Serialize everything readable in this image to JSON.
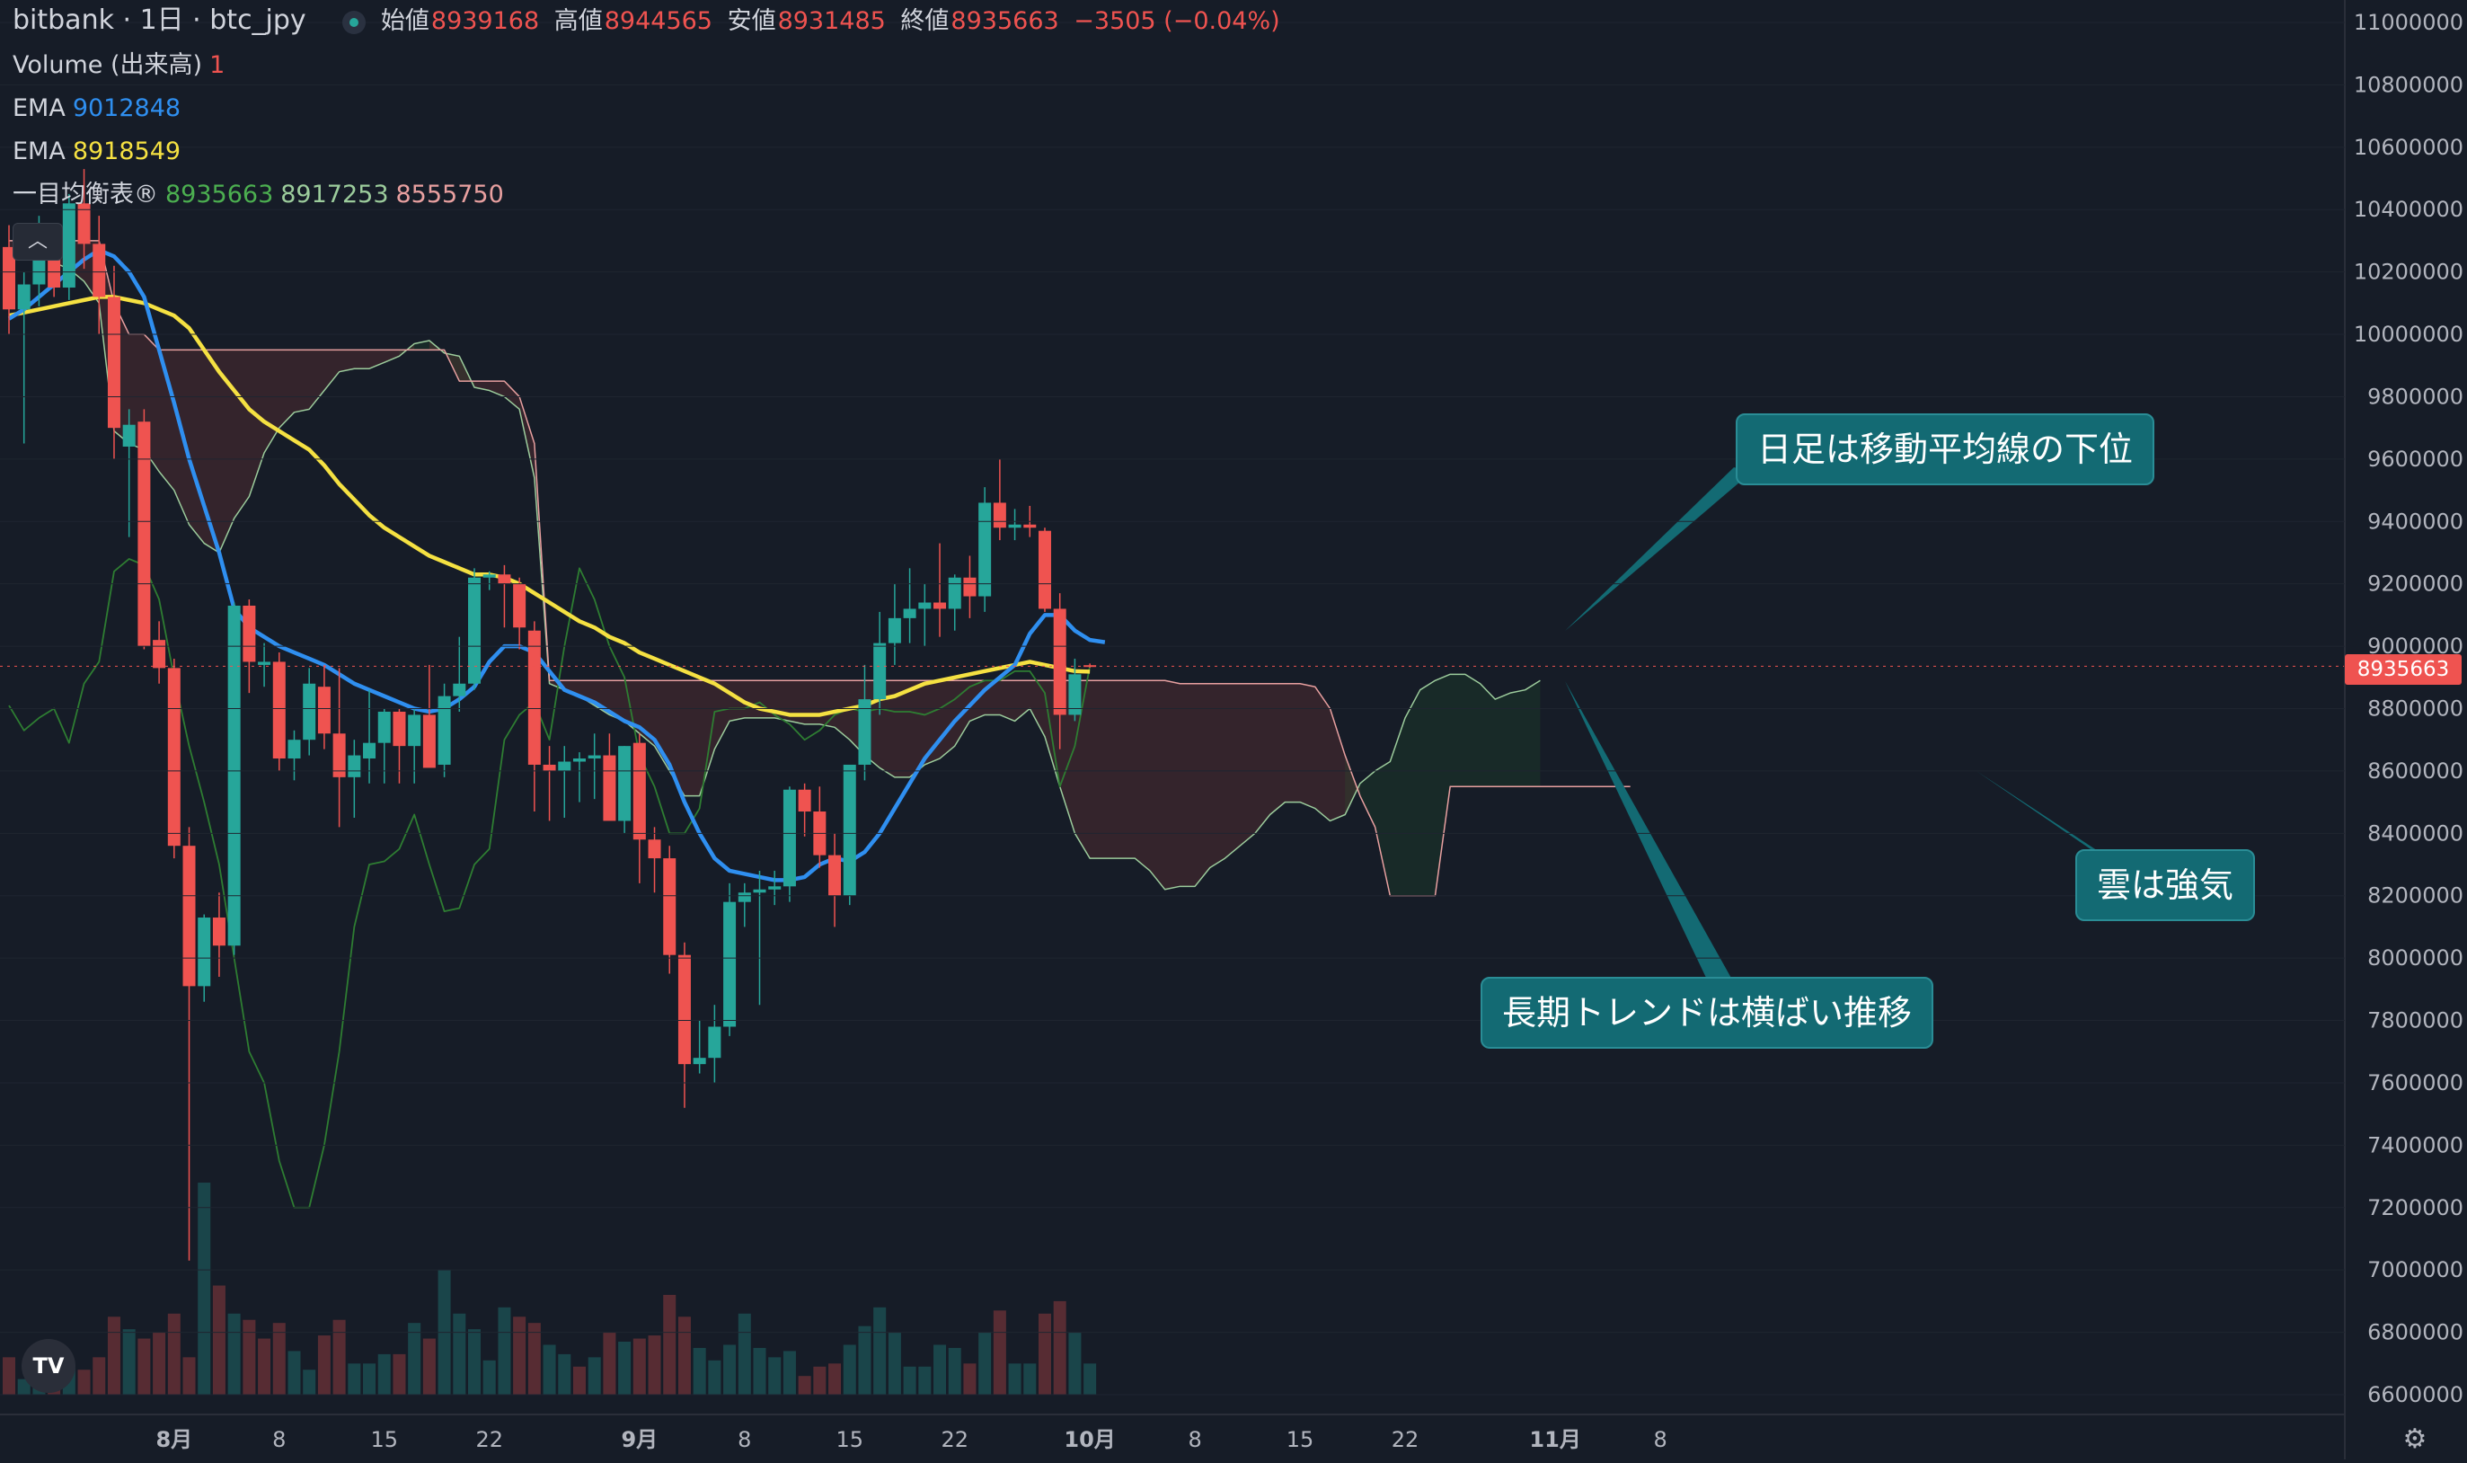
{
  "header": {
    "title": "bitbank · 1日 · btc_jpy",
    "open_label": "始値",
    "open": "8939168",
    "high_label": "高値",
    "high": "8944565",
    "low_label": "安値",
    "low": "8931485",
    "close_label": "終値",
    "close": "8935663",
    "change": "−3505 (−0.04%)"
  },
  "indicators": {
    "volume_label": "Volume (出来高)",
    "volume_value": "1",
    "ema1_label": "EMA",
    "ema1_value": "9012848",
    "ema2_label": "EMA",
    "ema2_value": "8918549",
    "ichimoku_label": "一目均衡表®",
    "ichimoku_v1": "8935663",
    "ichimoku_v2": "8917253",
    "ichimoku_v3": "8555750"
  },
  "collapse_icon": "chevron-up-icon",
  "logo": "TV",
  "settings_icon": "gear-icon",
  "price_badge": "8935663",
  "annotations": {
    "ma": "日足は移動平均線の下位",
    "trend": "長期トレンドは横ばい推移",
    "cloud": "雲は強気"
  },
  "colors": {
    "background": "#161c27",
    "up": "#26a69a",
    "down": "#ef5350",
    "ema_fast": "#2f8ff0",
    "ema_slow": "#f5e142",
    "conversion": "#2e7d32",
    "span_a": "#9ccc9c",
    "span_b": "#e8a0a0",
    "annotation": "#136a73"
  },
  "chart_data": {
    "type": "candlestick",
    "y_axis": {
      "range": [
        6600000,
        11000000
      ],
      "ticks": [
        6600000,
        6800000,
        7000000,
        7200000,
        7400000,
        7600000,
        7800000,
        8000000,
        8200000,
        8400000,
        8600000,
        8800000,
        9000000,
        9200000,
        9400000,
        9600000,
        9800000,
        10000000,
        10200000,
        10400000,
        10600000,
        10800000,
        11000000
      ],
      "tick_labels": [
        "6600000",
        "6800000",
        "7000000",
        "7200000",
        "7400000",
        "7600000",
        "7800000",
        "8000000",
        "8200000",
        "8400000",
        "8600000",
        "8800000",
        "9000000",
        "9200000",
        "9400000",
        "9600000",
        "9800000",
        "10000000",
        "10200000",
        "10400000",
        "10600000",
        "10800000",
        "11000000"
      ]
    },
    "x_axis": {
      "first_date": "2024-07-21",
      "tick_dates": [
        "2024-08-01",
        "2024-08-08",
        "2024-08-15",
        "2024-08-22",
        "2024-09-01",
        "2024-09-08",
        "2024-09-15",
        "2024-09-22",
        "2024-10-01",
        "2024-10-08",
        "2024-10-15",
        "2024-10-22",
        "2024-11-01",
        "2024-11-08"
      ],
      "tick_labels": [
        "8月",
        "8",
        "15",
        "22",
        "9月",
        "8",
        "15",
        "22",
        "10月",
        "8",
        "15",
        "22",
        "11月",
        "8"
      ]
    },
    "candles": [
      [
        10280000,
        10350000,
        10000000,
        10080000
      ],
      [
        10080000,
        10200000,
        9650000,
        10160000
      ],
      [
        10160000,
        10380000,
        10090000,
        10260000
      ],
      [
        10250000,
        10340000,
        10120000,
        10150000
      ],
      [
        10150000,
        10450000,
        10110000,
        10420000
      ],
      [
        10420000,
        10530000,
        10210000,
        10290000
      ],
      [
        10290000,
        10380000,
        10000000,
        10120000
      ],
      [
        10120000,
        10220000,
        9600000,
        9700000
      ],
      [
        9640000,
        9760000,
        9350000,
        9710000
      ],
      [
        9720000,
        9760000,
        8990000,
        9000000
      ],
      [
        9020000,
        9080000,
        8880000,
        8930000
      ],
      [
        8930000,
        8960000,
        8320000,
        8360000
      ],
      [
        8360000,
        8420000,
        7030000,
        7910000
      ],
      [
        7910000,
        8140000,
        7860000,
        8130000
      ],
      [
        8130000,
        8210000,
        7940000,
        8040000
      ],
      [
        8040000,
        9140000,
        8010000,
        9130000
      ],
      [
        9130000,
        9150000,
        8850000,
        8950000
      ],
      [
        8940000,
        9010000,
        8870000,
        8950000
      ],
      [
        8950000,
        8980000,
        8600000,
        8640000
      ],
      [
        8640000,
        8730000,
        8570000,
        8700000
      ],
      [
        8700000,
        8930000,
        8650000,
        8880000
      ],
      [
        8870000,
        8940000,
        8670000,
        8720000
      ],
      [
        8720000,
        8930000,
        8420000,
        8580000
      ],
      [
        8580000,
        8700000,
        8450000,
        8650000
      ],
      [
        8640000,
        8860000,
        8560000,
        8690000
      ],
      [
        8690000,
        8800000,
        8560000,
        8790000
      ],
      [
        8790000,
        8800000,
        8560000,
        8680000
      ],
      [
        8680000,
        8800000,
        8560000,
        8780000
      ],
      [
        8780000,
        8940000,
        8620000,
        8610000
      ],
      [
        8620000,
        8880000,
        8580000,
        8840000
      ],
      [
        8840000,
        9030000,
        8790000,
        8880000
      ],
      [
        8880000,
        9250000,
        8860000,
        9220000
      ],
      [
        9220000,
        9240000,
        9180000,
        9230000
      ],
      [
        9230000,
        9260000,
        9060000,
        9200000
      ],
      [
        9200000,
        9220000,
        8990000,
        9060000
      ],
      [
        9050000,
        9080000,
        8470000,
        8620000
      ],
      [
        8620000,
        8680000,
        8440000,
        8600000
      ],
      [
        8600000,
        8680000,
        8450000,
        8630000
      ],
      [
        8630000,
        8660000,
        8500000,
        8640000
      ],
      [
        8640000,
        8720000,
        8510000,
        8650000
      ],
      [
        8650000,
        8720000,
        8450000,
        8440000
      ],
      [
        8440000,
        8680000,
        8400000,
        8680000
      ],
      [
        8690000,
        8720000,
        8240000,
        8380000
      ],
      [
        8380000,
        8420000,
        8210000,
        8320000
      ],
      [
        8320000,
        8360000,
        7950000,
        8010000
      ],
      [
        8010000,
        8050000,
        7520000,
        7660000
      ],
      [
        7660000,
        7800000,
        7630000,
        7680000
      ],
      [
        7680000,
        7850000,
        7600000,
        7780000
      ],
      [
        7780000,
        8240000,
        7750000,
        8180000
      ],
      [
        8180000,
        8240000,
        8100000,
        8210000
      ],
      [
        8210000,
        8280000,
        7850000,
        8220000
      ],
      [
        8220000,
        8280000,
        8170000,
        8230000
      ],
      [
        8230000,
        8550000,
        8180000,
        8540000
      ],
      [
        8540000,
        8560000,
        8390000,
        8470000
      ],
      [
        8470000,
        8550000,
        8290000,
        8330000
      ],
      [
        8330000,
        8400000,
        8100000,
        8200000
      ],
      [
        8200000,
        8610000,
        8170000,
        8620000
      ],
      [
        8620000,
        8940000,
        8570000,
        8830000
      ],
      [
        8830000,
        9110000,
        8780000,
        9010000
      ],
      [
        9010000,
        9200000,
        8940000,
        9090000
      ],
      [
        9090000,
        9250000,
        9010000,
        9120000
      ],
      [
        9120000,
        9200000,
        9000000,
        9140000
      ],
      [
        9140000,
        9330000,
        9030000,
        9120000
      ],
      [
        9120000,
        9230000,
        9050000,
        9220000
      ],
      [
        9220000,
        9290000,
        9090000,
        9160000
      ],
      [
        9160000,
        9510000,
        9110000,
        9460000
      ],
      [
        9460000,
        9600000,
        9340000,
        9380000
      ],
      [
        9380000,
        9440000,
        9340000,
        9390000
      ],
      [
        9390000,
        9450000,
        9350000,
        9380000
      ],
      [
        9370000,
        9380000,
        9110000,
        9120000
      ],
      [
        9120000,
        9170000,
        8670000,
        8780000
      ],
      [
        8780000,
        8960000,
        8760000,
        8910000
      ],
      [
        8939168,
        8944565,
        8931485,
        8935663
      ]
    ],
    "volume": {
      "range": [
        6600000,
        7200000
      ],
      "colors": [
        "d",
        "u",
        "u",
        "d",
        "u",
        "d",
        "d",
        "d",
        "u",
        "d",
        "d",
        "d",
        "d",
        "u",
        "d",
        "u",
        "d",
        "d",
        "d",
        "u",
        "u",
        "d",
        "d",
        "u",
        "u",
        "u",
        "d",
        "u",
        "d",
        "u",
        "u",
        "u",
        "u",
        "u",
        "d",
        "d",
        "u",
        "u",
        "d",
        "u",
        "d",
        "u",
        "d",
        "d",
        "d",
        "d",
        "u",
        "u",
        "u",
        "u",
        "u",
        "u",
        "u",
        "d",
        "d",
        "d",
        "u",
        "u",
        "u",
        "u",
        "u",
        "u",
        "u",
        "u",
        "d",
        "u",
        "d",
        "u",
        "u",
        "d",
        "d",
        "u",
        "u"
      ],
      "values": [
        6720000,
        6650000,
        6680000,
        6660000,
        6690000,
        6680000,
        6720000,
        6850000,
        6810000,
        6780000,
        6800000,
        6860000,
        6720000,
        7280000,
        6950000,
        6860000,
        6840000,
        6780000,
        6830000,
        6740000,
        6680000,
        6790000,
        6840000,
        6700000,
        6700000,
        6730000,
        6730000,
        6830000,
        6780000,
        7000000,
        6860000,
        6810000,
        6710000,
        6880000,
        6850000,
        6830000,
        6760000,
        6730000,
        6690000,
        6720000,
        6800000,
        6770000,
        6780000,
        6790000,
        6920000,
        6850000,
        6750000,
        6710000,
        6760000,
        6860000,
        6750000,
        6720000,
        6740000,
        6660000,
        6690000,
        6700000,
        6760000,
        6820000,
        6880000,
        6800000,
        6690000,
        6690000,
        6760000,
        6750000,
        6700000,
        6800000,
        6870000,
        6700000,
        6700000,
        6860000,
        6900000,
        6800000,
        6700000
      ]
    },
    "ema_fast": [
      10050000,
      10080000,
      10120000,
      10160000,
      10200000,
      10240000,
      10270000,
      10250000,
      10200000,
      10120000,
      9950000,
      9780000,
      9600000,
      9450000,
      9300000,
      9120000,
      9060000,
      9030000,
      9000000,
      8980000,
      8960000,
      8940000,
      8910000,
      8880000,
      8860000,
      8840000,
      8820000,
      8800000,
      8790000,
      8800000,
      8830000,
      8870000,
      8950000,
      9000000,
      9000000,
      8980000,
      8920000,
      8860000,
      8840000,
      8820000,
      8790000,
      8760000,
      8740000,
      8700000,
      8620000,
      8500000,
      8400000,
      8320000,
      8280000,
      8270000,
      8260000,
      8250000,
      8250000,
      8260000,
      8300000,
      8320000,
      8310000,
      8340000,
      8400000,
      8480000,
      8560000,
      8640000,
      8700000,
      8760000,
      8810000,
      8860000,
      8900000,
      8940000,
      9040000,
      9100000,
      9100000,
      9050000,
      9020000,
      9012848
    ],
    "ema_slow": [
      10060000,
      10070000,
      10080000,
      10090000,
      10100000,
      10110000,
      10120000,
      10120000,
      10110000,
      10100000,
      10080000,
      10060000,
      10020000,
      9950000,
      9880000,
      9820000,
      9760000,
      9720000,
      9690000,
      9660000,
      9630000,
      9580000,
      9520000,
      9470000,
      9420000,
      9380000,
      9350000,
      9320000,
      9290000,
      9270000,
      9250000,
      9230000,
      9230000,
      9220000,
      9200000,
      9170000,
      9140000,
      9110000,
      9080000,
      9060000,
      9030000,
      9010000,
      8980000,
      8960000,
      8940000,
      8920000,
      8900000,
      8880000,
      8850000,
      8820000,
      8800000,
      8790000,
      8780000,
      8780000,
      8780000,
      8790000,
      8800000,
      8810000,
      8830000,
      8840000,
      8860000,
      8880000,
      8890000,
      8900000,
      8910000,
      8920000,
      8930000,
      8940000,
      8950000,
      8940000,
      8930000,
      8920000,
      8918549
    ],
    "conversion": [
      8810000,
      8730000,
      8770000,
      8800000,
      8690000,
      8880000,
      8950000,
      9240000,
      9280000,
      9260000,
      9150000,
      8900000,
      8680000,
      8500000,
      8300000,
      8000000,
      7700000,
      7600000,
      7350000,
      7200000,
      7200000,
      7400000,
      7700000,
      8100000,
      8300000,
      8310000,
      8350000,
      8460000,
      8300000,
      8150000,
      8160000,
      8300000,
      8350000,
      8700000,
      8780000,
      8820000,
      8700000,
      9000000,
      9250000,
      9150000,
      9000000,
      8900000,
      8650000,
      8550000,
      8400000,
      8400000,
      8480000,
      8790000,
      8800000,
      8800000,
      8820000,
      8780000,
      8750000,
      8700000,
      8730000,
      8780000,
      8800000,
      8790000,
      8800000,
      8790000,
      8790000,
      8780000,
      8800000,
      8830000,
      8870000,
      8890000,
      8890000,
      8920000,
      8920000,
      8850000,
      8550000,
      8680000,
      8935663
    ],
    "span_a": [
      10250000,
      10290000,
      10260000,
      10230000,
      10210000,
      10170000,
      10100000,
      9690000,
      9650000,
      9630000,
      9560000,
      9500000,
      9390000,
      9330000,
      9300000,
      9410000,
      9480000,
      9620000,
      9700000,
      9750000,
      9760000,
      9820000,
      9880000,
      9890000,
      9890000,
      9910000,
      9930000,
      9970000,
      9980000,
      9940000,
      9930000,
      9830000,
      9820000,
      9800000,
      9760000,
      9540000,
      8880000,
      8860000,
      8840000,
      8810000,
      8780000,
      8760000,
      8720000,
      8680000,
      8600000,
      8520000,
      8520000,
      8670000,
      8760000,
      8770000,
      8770000,
      8770000,
      8760000,
      8750000,
      8750000,
      8740000,
      8700000,
      8650000,
      8610000,
      8580000,
      8580000,
      8620000,
      8640000,
      8680000,
      8760000,
      8780000,
      8780000,
      8760000,
      8800000,
      8710000,
      8550000,
      8400000,
      8320000,
      8320000,
      8320000,
      8320000,
      8280000,
      8220000,
      8230000,
      8230000,
      8290000,
      8320000,
      8360000,
      8400000,
      8460000,
      8500000,
      8500000,
      8480000,
      8440000,
      8460000,
      8560000,
      8600000,
      8630000,
      8770000,
      8860000,
      8890000,
      8910000,
      8910000,
      8880000,
      8830000,
      8850000,
      8860000,
      8890000
    ],
    "span_b": [
      10300000,
      10300000,
      10300000,
      10300000,
      10300000,
      10300000,
      10300000,
      10100000,
      10000000,
      10000000,
      9950000,
      9950000,
      9950000,
      9950000,
      9950000,
      9950000,
      9950000,
      9950000,
      9950000,
      9950000,
      9950000,
      9950000,
      9950000,
      9950000,
      9950000,
      9950000,
      9950000,
      9950000,
      9950000,
      9950000,
      9850000,
      9850000,
      9850000,
      9850000,
      9800000,
      9650000,
      8890000,
      8890000,
      8890000,
      8890000,
      8890000,
      8890000,
      8890000,
      8890000,
      8890000,
      8890000,
      8890000,
      8890000,
      8890000,
      8890000,
      8890000,
      8890000,
      8890000,
      8890000,
      8890000,
      8890000,
      8890000,
      8890000,
      8890000,
      8890000,
      8890000,
      8890000,
      8890000,
      8890000,
      8890000,
      8890000,
      8890000,
      8890000,
      8890000,
      8890000,
      8890000,
      8890000,
      8890000,
      8890000,
      8890000,
      8890000,
      8890000,
      8890000,
      8880000,
      8880000,
      8880000,
      8880000,
      8880000,
      8880000,
      8880000,
      8880000,
      8880000,
      8870000,
      8800000,
      8650000,
      8520000,
      8420000,
      8200000,
      8200000,
      8200000,
      8200000,
      8550000,
      8550000,
      8550000,
      8550000,
      8550000,
      8550000,
      8550000,
      8550000,
      8550000,
      8550000,
      8550000,
      8550000,
      8550000
    ]
  }
}
